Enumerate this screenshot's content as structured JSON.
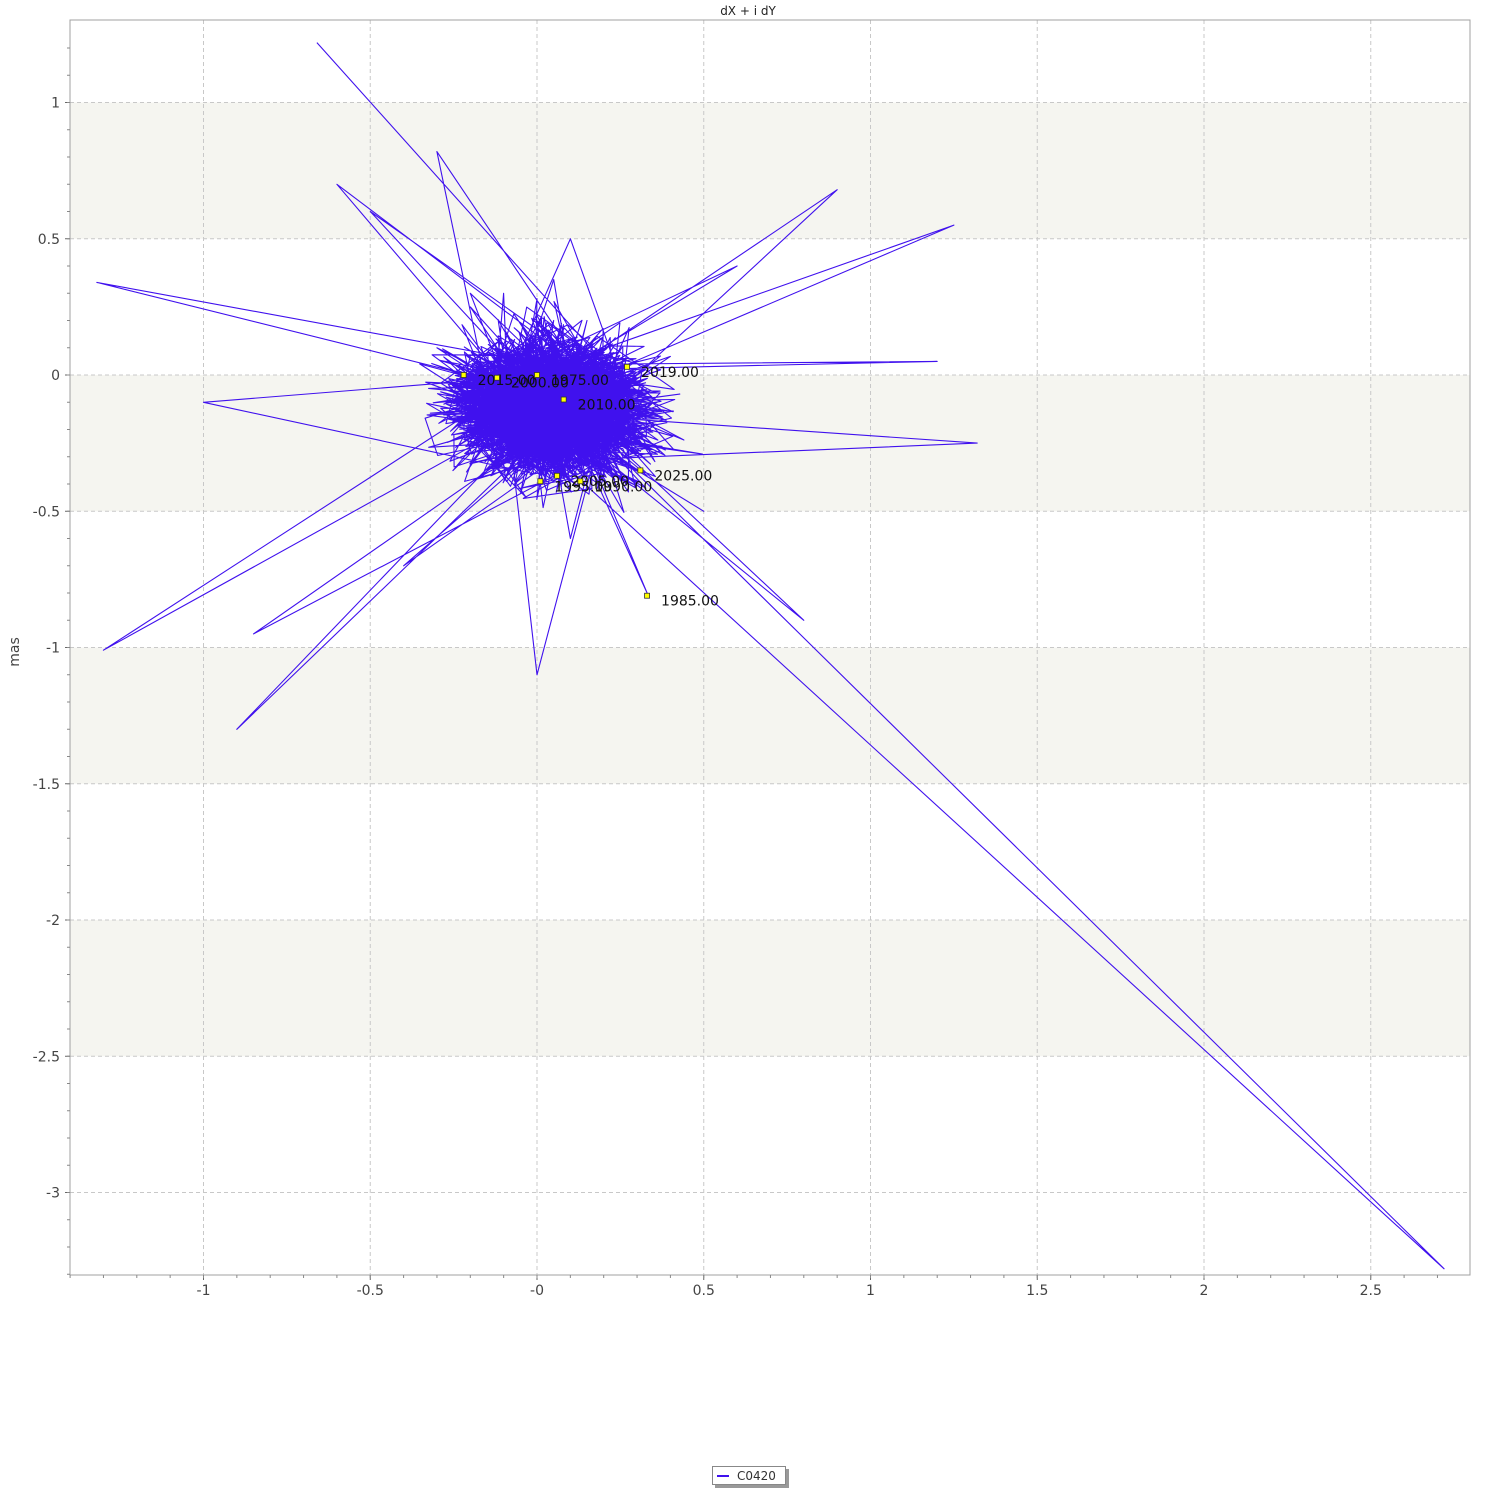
{
  "chart_data": {
    "type": "line",
    "title": "dX + i dY",
    "xlabel": "",
    "ylabel": "mas",
    "xlim": [
      -1.4,
      2.8
    ],
    "ylim": [
      -3.3,
      1.25
    ],
    "x_ticks": [
      "-1",
      "-0.5",
      "-0",
      "0.5",
      "1",
      "1.5",
      "2",
      "2.5"
    ],
    "y_ticks": [
      "1",
      "0.5",
      "0",
      "-0.5",
      "-1",
      "-1.5",
      "-2",
      "-2.5",
      "-3"
    ],
    "grid": true,
    "legend_position": "bottom-center",
    "colors": {
      "series": "#4011ee",
      "band": "#f5f5f0",
      "grid": "#c8c8c8",
      "marker": "#ffff00"
    },
    "series": [
      {
        "name": "C0420",
        "x": [
          -0.66,
          0.05,
          -0.12,
          0.2,
          -0.05,
          -0.3,
          0.15,
          -0.2,
          0.25,
          0.1,
          -0.1,
          0.3,
          -0.25,
          0.05,
          0.18,
          -0.15,
          0.0,
          0.22,
          -0.05,
          2.72,
          0.33,
          -0.85,
          0.1,
          -1.3,
          -0.2,
          0.5,
          -0.6,
          0.1,
          1.25,
          -0.1,
          -1.32,
          0.15,
          -0.9,
          0.8,
          -0.3,
          1.32,
          0.0,
          -0.5,
          1.2,
          -0.2,
          0.9,
          -0.4,
          0.6,
          -1.0,
          0.3,
          -0.1
        ],
        "y": [
          1.22,
          0.2,
          -0.1,
          0.15,
          -0.2,
          0.1,
          -0.3,
          0.25,
          -0.05,
          -0.4,
          0.3,
          0.0,
          -0.15,
          0.35,
          -0.25,
          0.05,
          0.28,
          -0.35,
          0.1,
          -3.28,
          -0.8,
          -0.95,
          -0.6,
          -1.01,
          0.3,
          -0.5,
          0.7,
          0.5,
          0.55,
          -0.3,
          0.34,
          0.2,
          -1.3,
          -0.9,
          0.82,
          -0.25,
          -1.1,
          0.6,
          0.05,
          -0.2,
          0.68,
          -0.7,
          0.4,
          -0.1,
          0.05,
          -0.2
        ]
      }
    ],
    "annotations": [
      {
        "label": "2015.00",
        "x": -0.22,
        "y": 0.0
      },
      {
        "label": "2000.00",
        "x": -0.12,
        "y": -0.01
      },
      {
        "label": "1975.00",
        "x": 0.0,
        "y": 0.0
      },
      {
        "label": "2019.00",
        "x": 0.27,
        "y": 0.03
      },
      {
        "label": "2010.00",
        "x": 0.08,
        "y": -0.09
      },
      {
        "label": "2005.00",
        "x": 0.06,
        "y": -0.37
      },
      {
        "label": "1995.00",
        "x": 0.01,
        "y": -0.39
      },
      {
        "label": "1990.00",
        "x": 0.13,
        "y": -0.39
      },
      {
        "label": "2025.00",
        "x": 0.31,
        "y": -0.35
      },
      {
        "label": "1985.00",
        "x": 0.33,
        "y": -0.81
      }
    ]
  }
}
